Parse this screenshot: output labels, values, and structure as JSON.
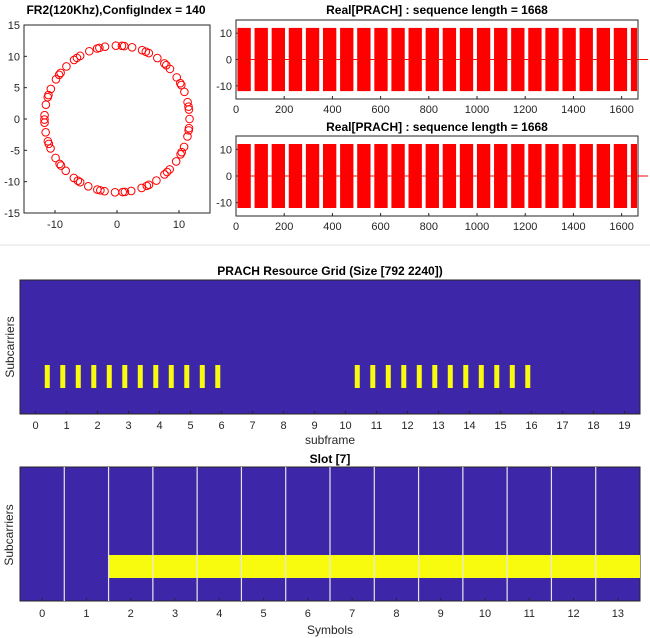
{
  "colors": {
    "marker": "#ff0000",
    "signal": "#ff0000",
    "grid_bg": "#3e26a8",
    "grid_fill": "#f9fb0e",
    "slot_lines": "#e6e6e6"
  },
  "chart_data": [
    {
      "type": "scatter",
      "title": "FR2(120Khz),ConfigIndex = 140",
      "xlim": [
        -15,
        15
      ],
      "ylim": [
        -15,
        15
      ],
      "xticks": [
        -10,
        0,
        10
      ],
      "yticks": [
        -15,
        -10,
        -5,
        0,
        5,
        10,
        15
      ],
      "radius": 11.7,
      "n_points": 70,
      "marker": "circle"
    },
    {
      "type": "line",
      "title": "Real[PRACH] : sequence length = 1668",
      "xlim": [
        0,
        1668
      ],
      "ylim": [
        -15,
        15
      ],
      "xticks": [
        0,
        200,
        400,
        600,
        800,
        1000,
        1200,
        1400,
        1600
      ],
      "yticks": [
        -10,
        0,
        10
      ]
    },
    {
      "type": "line",
      "title": "Real[PRACH] : sequence length = 1668",
      "xlim": [
        0,
        1668
      ],
      "ylim": [
        -15,
        15
      ],
      "xticks": [
        0,
        200,
        400,
        600,
        800,
        1000,
        1200,
        1400,
        1600
      ],
      "yticks": [
        -10,
        0,
        10
      ]
    },
    {
      "type": "heatmap",
      "title": "PRACH Resource Grid (Size [792 2240])",
      "xlabel": "subframe",
      "ylabel": "Subcarriers",
      "xlim": [
        -0.5,
        19.5
      ],
      "xticks": [
        0,
        1,
        2,
        3,
        4,
        5,
        6,
        7,
        8,
        9,
        10,
        11,
        12,
        13,
        14,
        15,
        16,
        17,
        18,
        19
      ],
      "bars": [
        0.38,
        0.88,
        1.38,
        1.88,
        2.38,
        2.88,
        3.38,
        3.88,
        4.38,
        4.88,
        5.38,
        5.88,
        10.38,
        10.88,
        11.38,
        11.88,
        12.38,
        12.88,
        13.38,
        13.88,
        14.38,
        14.88,
        15.38,
        15.88
      ]
    },
    {
      "type": "heatmap",
      "title": "Slot [7]",
      "xlabel": "Symbols",
      "ylabel": "Subcarriers",
      "xlim": [
        -0.5,
        13.5
      ],
      "xticks": [
        0,
        1,
        2,
        3,
        4,
        5,
        6,
        7,
        8,
        9,
        10,
        11,
        12,
        13
      ],
      "band_start_symbol": 1.5,
      "band_end_symbol": 13.5
    }
  ]
}
